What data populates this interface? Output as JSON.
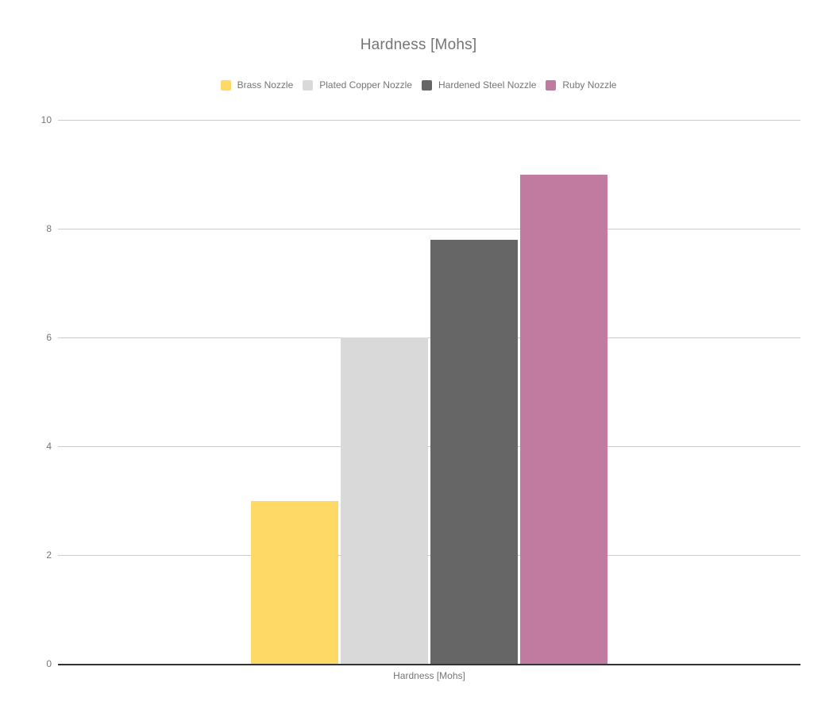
{
  "chart_data": {
    "type": "bar",
    "title": "Hardness [Mohs]",
    "xlabel": "Hardness [Mohs]",
    "categories": [
      "Hardness [Mohs]"
    ],
    "series": [
      {
        "name": "Brass Nozzle",
        "color": "#FFD966",
        "values": [
          3
        ]
      },
      {
        "name": "Plated Copper Nozzle",
        "color": "#D9D9D9",
        "values": [
          6
        ]
      },
      {
        "name": "Hardened Steel Nozzle",
        "color": "#666666",
        "values": [
          7.8
        ]
      },
      {
        "name": "Ruby Nozzle",
        "color": "#C27BA0",
        "values": [
          9
        ]
      }
    ],
    "ylim": [
      0,
      10
    ],
    "yticks": [
      0,
      2,
      4,
      6,
      8,
      10
    ],
    "grid": true,
    "legend_position": "top"
  },
  "colors": {
    "background": "#ffffff",
    "text": "#757575",
    "gridline": "#cccccc",
    "baseline": "#333333"
  }
}
